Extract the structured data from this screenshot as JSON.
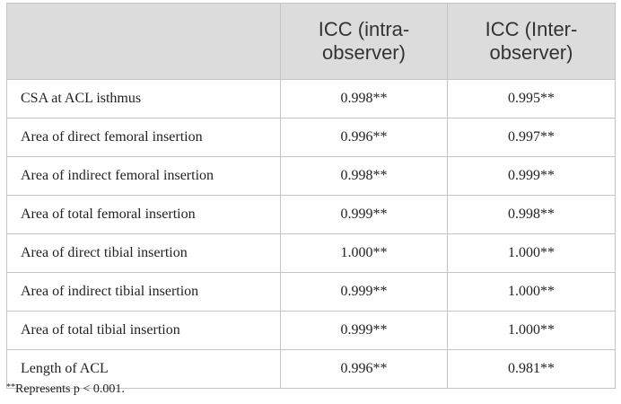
{
  "table": {
    "header": {
      "col1": "",
      "col2": "ICC (intra-observer)",
      "col3": "ICC (Inter-observer)"
    },
    "rows": [
      {
        "label": "CSA at ACL isthmus",
        "intra": "0.998**",
        "inter": "0.995**"
      },
      {
        "label": "Area of direct femoral insertion",
        "intra": "0.996**",
        "inter": "0.997**"
      },
      {
        "label": "Area of indirect femoral insertion",
        "intra": "0.998**",
        "inter": "0.999**"
      },
      {
        "label": "Area of total femoral insertion",
        "intra": "0.999**",
        "inter": "0.998**"
      },
      {
        "label": "Area of direct tibial insertion",
        "intra": "1.000**",
        "inter": "1.000**"
      },
      {
        "label": "Area of indirect tibial insertion",
        "intra": "0.999**",
        "inter": "1.000**"
      },
      {
        "label": "Area of total tibial insertion",
        "intra": "0.999**",
        "inter": "1.000**"
      },
      {
        "label": "Length of ACL",
        "intra": "0.996**",
        "inter": "0.981**"
      }
    ]
  },
  "footnote": {
    "marker": "**",
    "text": "Represents p < 0.001."
  }
}
